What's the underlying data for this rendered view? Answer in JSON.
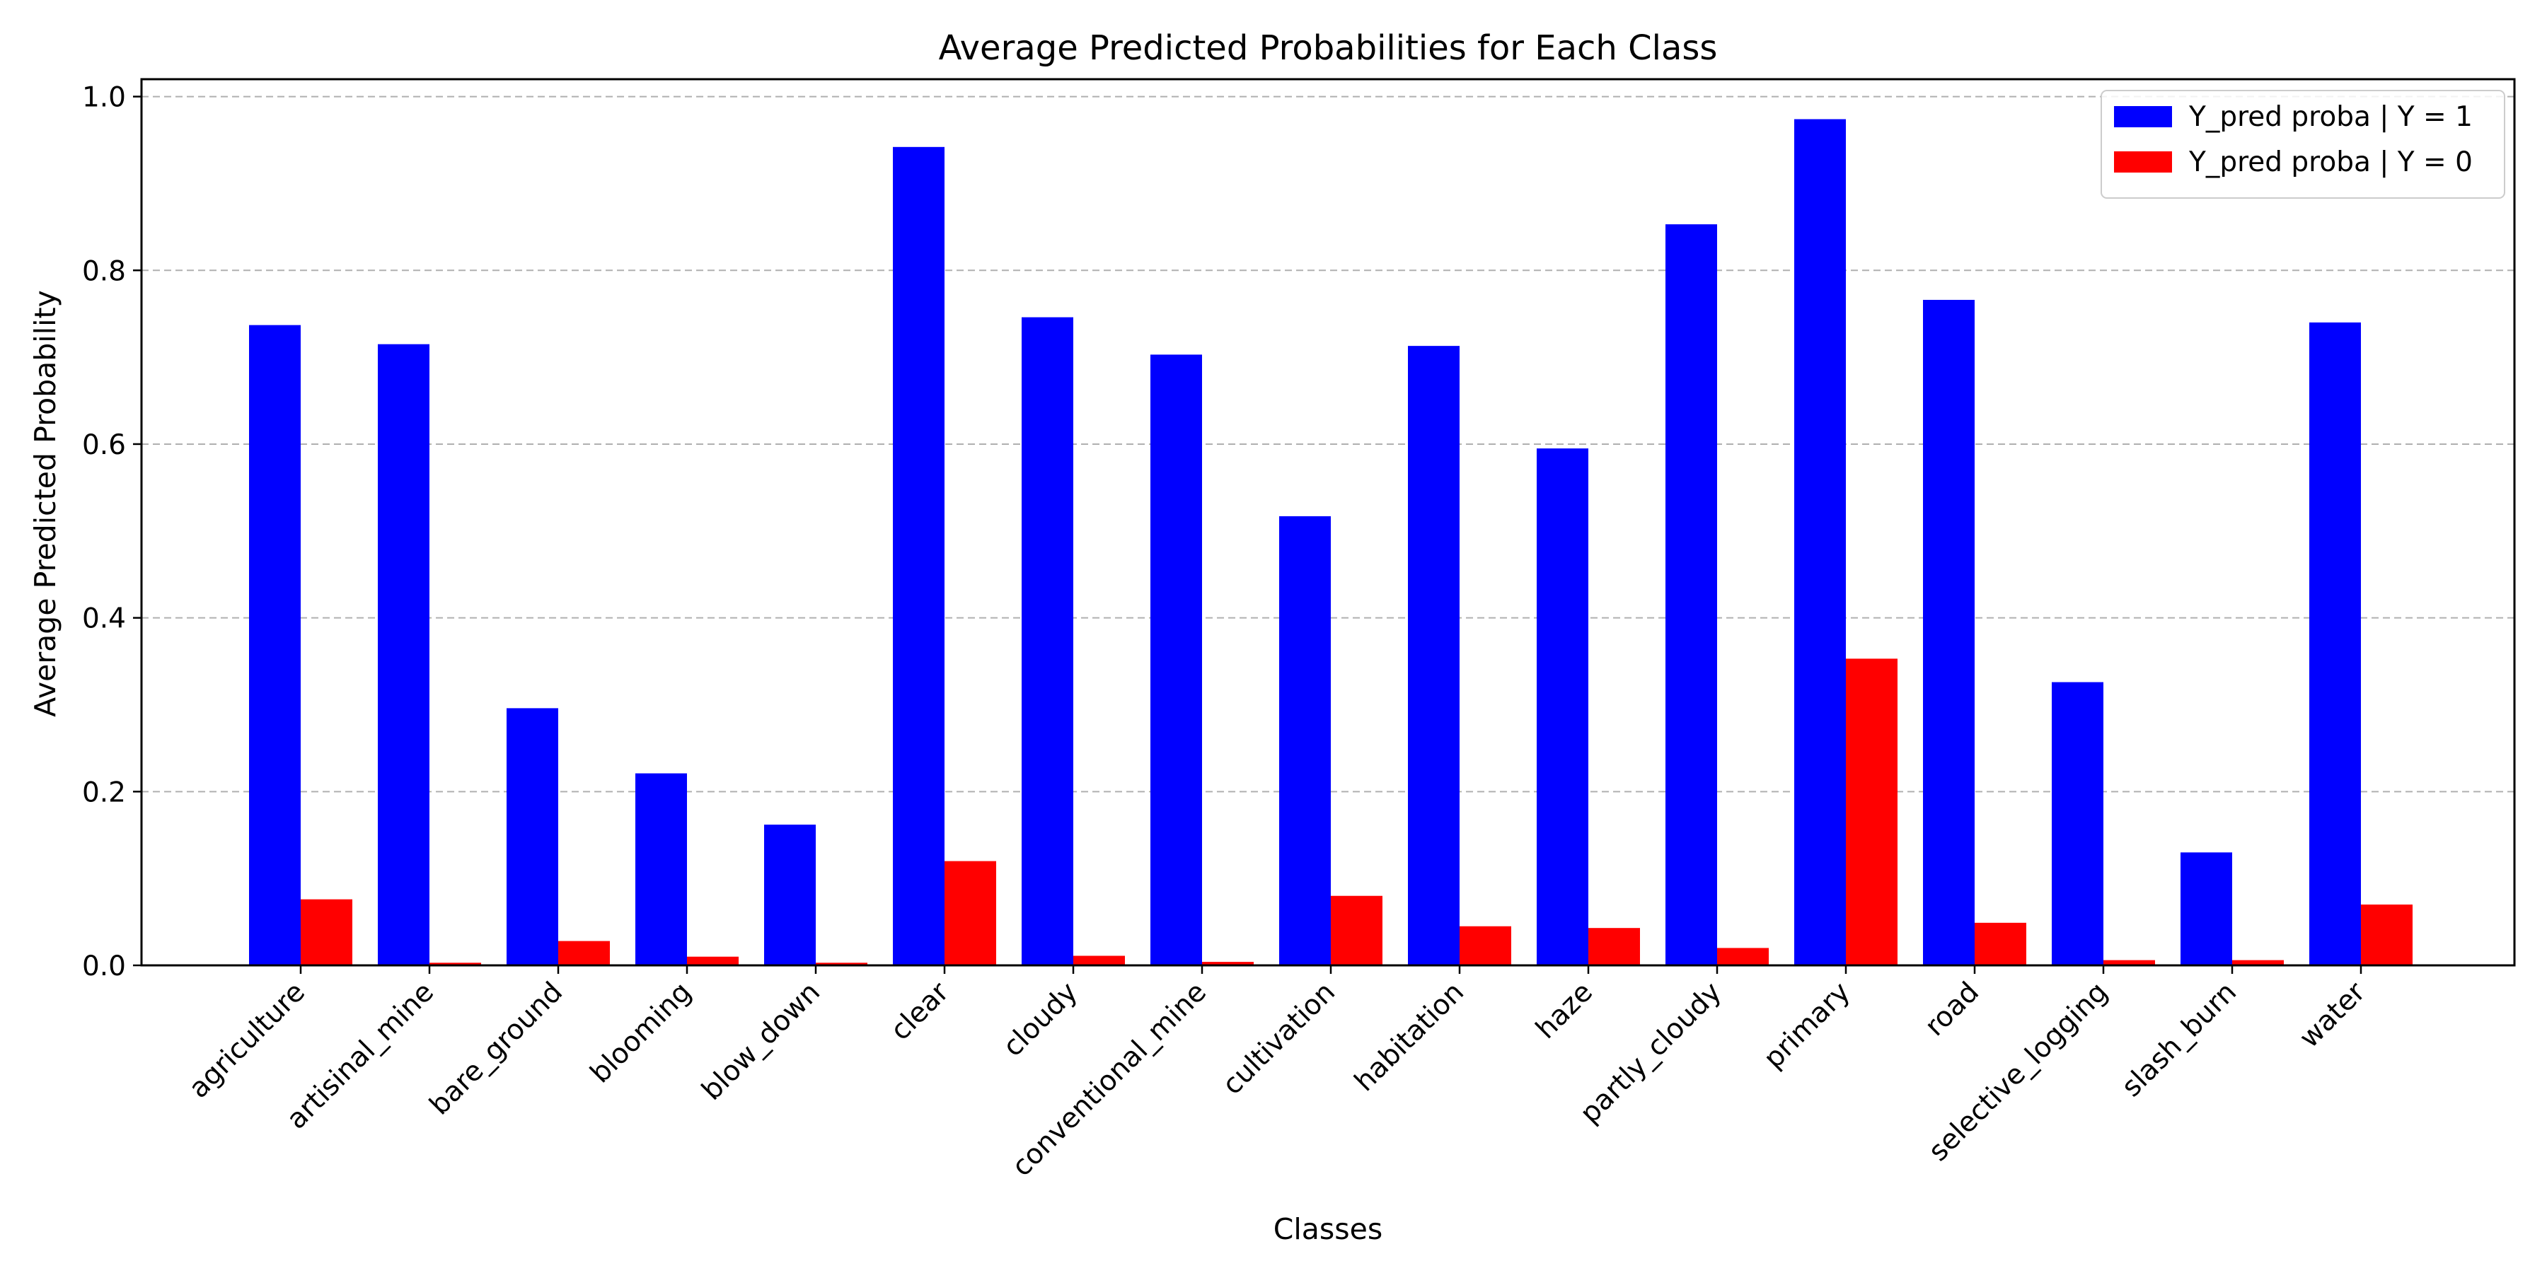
{
  "chart_data": {
    "type": "bar",
    "title": "Average Predicted Probabilities for Each Class",
    "xlabel": "Classes",
    "ylabel": "Average Predicted Probability",
    "ylim": [
      0,
      1.02
    ],
    "yticks": [
      0.0,
      0.2,
      0.4,
      0.6,
      0.8,
      1.0
    ],
    "ytick_labels": [
      "0.0",
      "0.2",
      "0.4",
      "0.6",
      "0.8",
      "1.0"
    ],
    "grid": "horizontal-dashed",
    "legend_position": "top-right",
    "categories": [
      "agriculture",
      "artisinal_mine",
      "bare_ground",
      "blooming",
      "blow_down",
      "clear",
      "cloudy",
      "conventional_mine",
      "cultivation",
      "habitation",
      "haze",
      "partly_cloudy",
      "primary",
      "road",
      "selective_logging",
      "slash_burn",
      "water"
    ],
    "series": [
      {
        "name": "Y_pred proba | Y = 1",
        "color": "#0000ff",
        "values": [
          0.737,
          0.715,
          0.296,
          0.221,
          0.162,
          0.942,
          0.746,
          0.703,
          0.517,
          0.713,
          0.595,
          0.853,
          0.974,
          0.766,
          0.326,
          0.13,
          0.74
        ]
      },
      {
        "name": "Y_pred proba | Y = 0",
        "color": "#ff0000",
        "values": [
          0.076,
          0.003,
          0.028,
          0.01,
          0.003,
          0.12,
          0.011,
          0.004,
          0.08,
          0.045,
          0.043,
          0.02,
          0.353,
          0.049,
          0.006,
          0.006,
          0.07
        ]
      }
    ]
  }
}
